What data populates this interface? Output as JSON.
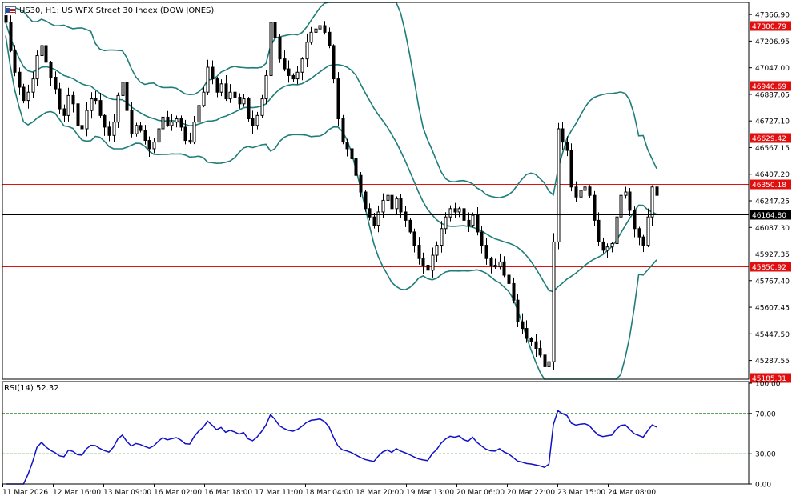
{
  "header": {
    "symbol_label": "US30, H1:  US WFX Street 30 Index (DOW JONES)",
    "icon": "chart-window-flag-icon"
  },
  "chart_data": {
    "type": "line",
    "title": "US30, H1:  US WFX Street 30 Index (DOW JONES)",
    "price_axis": {
      "ticks": [
        "47366.90",
        "47206.95",
        "47047.00",
        "46887.05",
        "46727.10",
        "46567.15",
        "46407.20",
        "46247.25",
        "46087.30",
        "45927.35",
        "45767.40",
        "45607.45",
        "45447.50",
        "45287.55"
      ],
      "tick_values": [
        47366.9,
        47206.95,
        47047.0,
        46887.05,
        46727.1,
        46567.15,
        46407.2,
        46247.25,
        46087.3,
        45927.35,
        45767.4,
        45607.45,
        45447.5,
        45287.55
      ],
      "range": [
        45175,
        47430
      ]
    },
    "horizontal_levels": [
      {
        "label": "47300.79",
        "value": 47300.79,
        "color": "#e01010"
      },
      {
        "label": "46940.69",
        "value": 46940.69,
        "color": "#e01010"
      },
      {
        "label": "46629.42",
        "value": 46629.42,
        "color": "#e01010"
      },
      {
        "label": "46350.18",
        "value": 46350.18,
        "color": "#e01010"
      },
      {
        "label": "45850.92",
        "value": 45850.92,
        "color": "#e01010"
      },
      {
        "label": "45185.31",
        "value": 45185.31,
        "color": "#e01010"
      }
    ],
    "current_price": {
      "label": "46164.80",
      "value": 46164.8,
      "color": "#000000"
    },
    "x_labels": [
      "11 Mar 2026",
      "12 Mar 16:00",
      "13 Mar 09:00",
      "16 Mar 02:00",
      "16 Mar 18:00",
      "17 Mar 11:00",
      "18 Mar 04:00",
      "18 Mar 20:00",
      "19 Mar 13:00",
      "20 Mar 06:00",
      "20 Mar 22:00",
      "23 Mar 15:00",
      "24 Mar 08:00"
    ],
    "close_series": {
      "name": "US30 H1",
      "values": [
        47320,
        47150,
        47020,
        46930,
        46850,
        46900,
        46980,
        47120,
        47180,
        47080,
        46990,
        46920,
        46800,
        46760,
        46880,
        46830,
        46700,
        46680,
        46790,
        46860,
        46850,
        46760,
        46690,
        46640,
        46720,
        46880,
        46960,
        46790,
        46650,
        46700,
        46670,
        46610,
        46560,
        46600,
        46680,
        46750,
        46700,
        46720,
        46740,
        46690,
        46610,
        46600,
        46720,
        46820,
        46900,
        47050,
        46980,
        46900,
        46950,
        46860,
        46900,
        46870,
        46830,
        46860,
        46740,
        46700,
        46760,
        46860,
        47000,
        47320,
        47230,
        47100,
        47040,
        47000,
        46980,
        47020,
        47100,
        47200,
        47260,
        47280,
        47300,
        47260,
        47180,
        46980,
        46740,
        46600,
        46560,
        46500,
        46400,
        46300,
        46200,
        46150,
        46100,
        46180,
        46250,
        46280,
        46200,
        46260,
        46180,
        46130,
        46060,
        45980,
        45900,
        45860,
        45830,
        45920,
        45980,
        46080,
        46150,
        46200,
        46180,
        46200,
        46130,
        46100,
        46160,
        46060,
        45980,
        45900,
        45860,
        45850,
        45880,
        45800,
        45750,
        45650,
        45520,
        45480,
        45420,
        45400,
        45360,
        45320,
        45250,
        45280,
        46000,
        46680,
        46600,
        46550,
        46330,
        46270,
        46310,
        46330,
        46280,
        46130,
        46000,
        45950,
        45970,
        45990,
        46150,
        46280,
        46300,
        46190,
        46080,
        46030,
        45980,
        46150,
        46330,
        46280
      ]
    },
    "bollinger_bands": {
      "upper": {
        "color": "#1f7d7a"
      },
      "middle": {
        "color": "#1f7d7a"
      },
      "lower": {
        "color": "#1f7d7a"
      }
    },
    "indicator": {
      "name": "RSI(14)",
      "title": "RSI(14) 52.32",
      "current": 52.32,
      "levels": [
        70,
        30
      ],
      "ticks": [
        "100.00",
        "70.00",
        "30.00",
        "0.00"
      ],
      "tick_values": [
        100,
        70,
        30,
        0
      ],
      "color": "#1010c8"
    },
    "colors": {
      "candles": "#000000",
      "level_lines": "#e01010",
      "bands": "#1f7d7a",
      "rsi": "#1010c8",
      "rsi_levels": "#2a8a2a"
    },
    "grid": false
  }
}
